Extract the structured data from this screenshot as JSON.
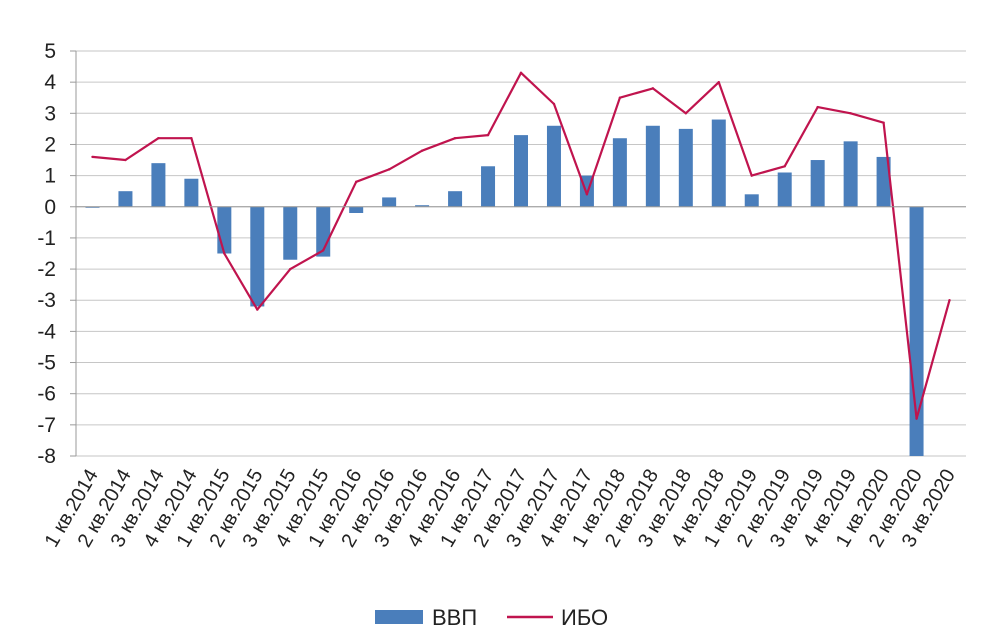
{
  "chart_data": {
    "type": "bar",
    "title": "",
    "xlabel": "",
    "ylabel": "",
    "ylim": [
      -8,
      5
    ],
    "yticks": [
      5,
      4,
      3,
      2,
      1,
      0,
      -1,
      -2,
      -3,
      -4,
      -5,
      -6,
      -7,
      -8
    ],
    "grid": true,
    "legend_position": "bottom-center",
    "categories": [
      "1 кв.2014",
      "2 кв.2014",
      "3 кв.2014",
      "4 кв.2014",
      "1 кв.2015",
      "2 кв.2015",
      "3 кв.2015",
      "4 кв.2015",
      "1 кв.2016",
      "2 кв.2016",
      "3 кв.2016",
      "4 кв.2016",
      "1 кв.2017",
      "2 кв.2017",
      "3 кв.2017",
      "4 кв.2017",
      "1 кв.2018",
      "2 кв.2018",
      "3 кв.2018",
      "4 кв.2018",
      "1 кв.2019",
      "2 кв.2019",
      "3 кв.2019",
      "4 кв.2019",
      "1 кв.2020",
      "2 кв.2020",
      "3 кв.2020"
    ],
    "series": [
      {
        "name": "ВВП",
        "type": "bar",
        "color": "#4a7ebb",
        "values": [
          0.0,
          0.5,
          1.4,
          0.9,
          -1.5,
          -3.2,
          -1.7,
          -1.6,
          -0.2,
          0.3,
          0.05,
          0.5,
          1.3,
          2.3,
          2.6,
          1.0,
          2.2,
          2.6,
          2.5,
          2.8,
          0.4,
          1.1,
          1.5,
          2.1,
          1.6,
          -8.0,
          null
        ]
      },
      {
        "name": "ИБО",
        "type": "line",
        "color": "#c0144e",
        "values": [
          1.6,
          1.5,
          2.2,
          2.2,
          -1.5,
          -3.3,
          -2.0,
          -1.4,
          0.8,
          1.2,
          1.8,
          2.2,
          2.3,
          4.3,
          3.3,
          0.4,
          3.5,
          3.8,
          3.0,
          4.0,
          1.0,
          1.3,
          3.2,
          3.0,
          2.7,
          -6.8,
          -3.0
        ]
      }
    ]
  }
}
